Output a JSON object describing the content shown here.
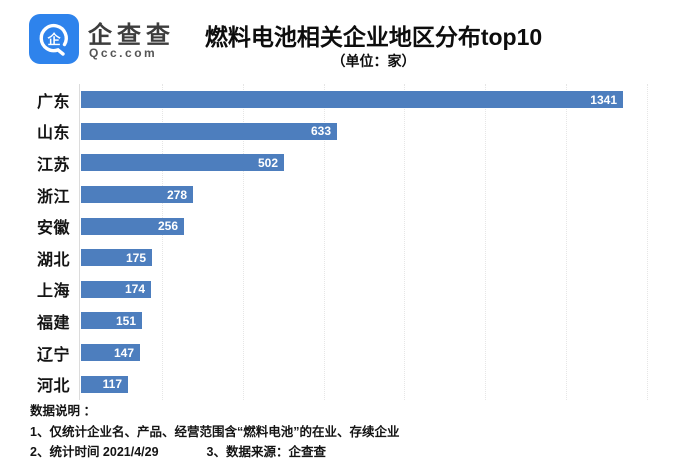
{
  "header": {
    "brand_cn": "企查查",
    "brand_en": "Qcc.com",
    "logo_color": "#2e83ec",
    "title": "燃料电池相关企业地区分布top10",
    "subtitle": "（单位：家）"
  },
  "chart_data": {
    "type": "bar",
    "orientation": "horizontal",
    "title": "燃料电池相关企业地区分布top10",
    "subtitle": "（单位：家）",
    "unit": "家",
    "categories": [
      "广东",
      "山东",
      "江苏",
      "浙江",
      "安徽",
      "湖北",
      "上海",
      "福建",
      "辽宁",
      "河北"
    ],
    "values": [
      1341,
      633,
      502,
      278,
      256,
      175,
      174,
      151,
      147,
      117
    ],
    "xlim": [
      0,
      1400
    ],
    "gridline_interval": 200,
    "grid": true,
    "legend": false,
    "bar_color": "#4d7ebe",
    "value_label_color": "#ffffff",
    "value_label_position": "inside-end"
  },
  "footer": {
    "heading": "数据说明 ：",
    "note1": "1、仅统计企业名、产品、经营范围含“燃料电池”的在业、存续企业",
    "note2": "2、统计时间 2021/4/29",
    "note3": "3、数据来源：企查查"
  }
}
